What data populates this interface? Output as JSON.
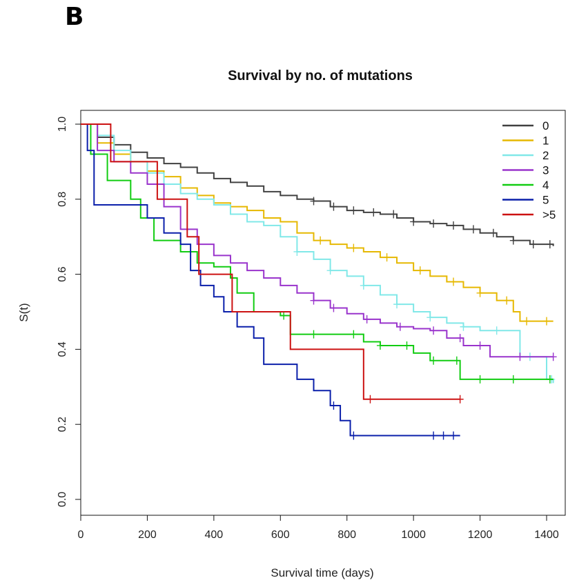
{
  "panel_label": "B",
  "chart_data": {
    "type": "line",
    "title": "Survival by no. of mutations",
    "xlabel": "Survival time (days)",
    "ylabel": "S(t)",
    "xlim": [
      0,
      1440
    ],
    "ylim": [
      0,
      1.0
    ],
    "xticks": [
      "0",
      "200",
      "400",
      "600",
      "800",
      "1000",
      "1200",
      "1400"
    ],
    "yticks": [
      "0.0",
      "0.2",
      "0.4",
      "0.6",
      "0.8",
      "1.0"
    ],
    "legend_position": "top-right",
    "step": true,
    "series": [
      {
        "name": "0",
        "color": "#404040",
        "x": [
          0,
          50,
          100,
          150,
          200,
          250,
          300,
          350,
          400,
          450,
          500,
          550,
          600,
          650,
          700,
          750,
          800,
          850,
          900,
          950,
          1000,
          1050,
          1100,
          1150,
          1200,
          1250,
          1300,
          1350,
          1420
        ],
        "y": [
          1.0,
          0.965,
          0.945,
          0.925,
          0.91,
          0.895,
          0.885,
          0.87,
          0.855,
          0.845,
          0.835,
          0.82,
          0.81,
          0.8,
          0.795,
          0.78,
          0.77,
          0.765,
          0.76,
          0.75,
          0.74,
          0.735,
          0.73,
          0.72,
          0.71,
          0.7,
          0.69,
          0.68,
          0.675
        ],
        "censor_x": [
          700,
          760,
          820,
          880,
          940,
          1000,
          1060,
          1120,
          1180,
          1240,
          1300,
          1360,
          1410
        ]
      },
      {
        "name": "1",
        "color": "#E6B800",
        "x": [
          0,
          50,
          100,
          150,
          200,
          250,
          300,
          350,
          400,
          450,
          500,
          550,
          600,
          650,
          700,
          750,
          800,
          850,
          900,
          950,
          1000,
          1050,
          1100,
          1150,
          1200,
          1250,
          1300,
          1320,
          1420
        ],
        "y": [
          1.0,
          0.95,
          0.92,
          0.9,
          0.875,
          0.86,
          0.83,
          0.81,
          0.79,
          0.78,
          0.77,
          0.75,
          0.74,
          0.71,
          0.69,
          0.68,
          0.67,
          0.66,
          0.645,
          0.63,
          0.61,
          0.595,
          0.58,
          0.565,
          0.55,
          0.53,
          0.5,
          0.475,
          0.475
        ],
        "censor_x": [
          720,
          820,
          920,
          1020,
          1120,
          1200,
          1280,
          1340,
          1400
        ]
      },
      {
        "name": "2",
        "color": "#80E8E8",
        "x": [
          0,
          50,
          100,
          150,
          200,
          250,
          300,
          350,
          400,
          450,
          500,
          550,
          600,
          650,
          700,
          750,
          800,
          850,
          900,
          950,
          1000,
          1050,
          1100,
          1150,
          1200,
          1250,
          1300,
          1320,
          1400,
          1420
        ],
        "y": [
          1.0,
          0.97,
          0.93,
          0.9,
          0.87,
          0.84,
          0.815,
          0.8,
          0.785,
          0.76,
          0.74,
          0.73,
          0.7,
          0.66,
          0.64,
          0.61,
          0.595,
          0.57,
          0.545,
          0.52,
          0.5,
          0.485,
          0.47,
          0.46,
          0.45,
          0.45,
          0.45,
          0.38,
          0.32,
          0.31
        ],
        "censor_x": [
          650,
          750,
          850,
          950,
          1050,
          1150,
          1250,
          1350,
          1415
        ]
      },
      {
        "name": "3",
        "color": "#9933CC",
        "x": [
          0,
          50,
          100,
          150,
          200,
          250,
          300,
          350,
          400,
          450,
          500,
          550,
          600,
          650,
          700,
          750,
          800,
          850,
          900,
          950,
          1000,
          1050,
          1100,
          1150,
          1200,
          1230,
          1420
        ],
        "y": [
          1.0,
          0.93,
          0.9,
          0.87,
          0.84,
          0.78,
          0.72,
          0.68,
          0.65,
          0.63,
          0.61,
          0.59,
          0.57,
          0.55,
          0.53,
          0.51,
          0.495,
          0.48,
          0.47,
          0.46,
          0.455,
          0.45,
          0.43,
          0.41,
          0.41,
          0.38,
          0.38
        ],
        "censor_x": [
          700,
          760,
          860,
          960,
          1060,
          1140,
          1200,
          1320,
          1420
        ]
      },
      {
        "name": "4",
        "color": "#11CC11",
        "x": [
          0,
          30,
          80,
          150,
          180,
          220,
          300,
          350,
          400,
          450,
          470,
          520,
          600,
          630,
          700,
          850,
          900,
          1000,
          1050,
          1140,
          1420
        ],
        "y": [
          1.0,
          0.92,
          0.85,
          0.8,
          0.75,
          0.69,
          0.66,
          0.63,
          0.62,
          0.59,
          0.55,
          0.5,
          0.49,
          0.44,
          0.44,
          0.42,
          0.41,
          0.39,
          0.37,
          0.32,
          0.32
        ],
        "censor_x": [
          610,
          700,
          820,
          900,
          980,
          1060,
          1130,
          1200,
          1300,
          1410
        ]
      },
      {
        "name": "5",
        "color": "#0A1FAA",
        "x": [
          0,
          20,
          40,
          80,
          180,
          200,
          250,
          300,
          330,
          360,
          400,
          430,
          470,
          520,
          550,
          600,
          650,
          700,
          750,
          780,
          810,
          1140
        ],
        "y": [
          1.0,
          0.93,
          0.785,
          0.785,
          0.785,
          0.75,
          0.71,
          0.68,
          0.61,
          0.57,
          0.54,
          0.5,
          0.46,
          0.43,
          0.36,
          0.36,
          0.32,
          0.29,
          0.25,
          0.21,
          0.17,
          0.17
        ],
        "censor_x": [
          760,
          820,
          1060,
          1090,
          1120
        ]
      },
      {
        "name": ">5",
        "color": "#CC1111",
        "x": [
          0,
          90,
          230,
          320,
          355,
          455,
          630,
          850,
          1140
        ],
        "y": [
          1.0,
          0.9,
          0.8,
          0.7,
          0.6,
          0.5,
          0.4,
          0.267,
          0.267
        ],
        "censor_x": [
          870,
          1140
        ]
      }
    ]
  }
}
